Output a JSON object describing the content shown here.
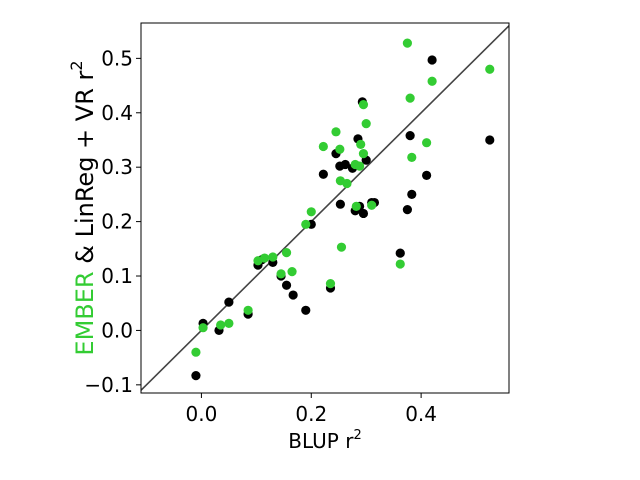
{
  "chart_data": {
    "type": "scatter",
    "xlabel": "BLUP r",
    "xlabel_sup": "2",
    "ylabel_parts": [
      {
        "text": "EMBER",
        "color": "#33cc33"
      },
      {
        "text": " & LinReg + VR r",
        "color": "#000000"
      }
    ],
    "ylabel_sup": "2",
    "xlim": [
      -0.11,
      0.56
    ],
    "ylim": [
      -0.115,
      0.565
    ],
    "xticks": [
      0.0,
      0.2,
      0.4
    ],
    "xtick_labels": [
      "0.0",
      "0.2",
      "0.4"
    ],
    "yticks": [
      -0.1,
      0.0,
      0.1,
      0.2,
      0.3,
      0.4,
      0.5
    ],
    "ytick_labels": [
      "−0.1",
      "0.0",
      "0.1",
      "0.2",
      "0.3",
      "0.4",
      "0.5"
    ],
    "grid": false,
    "diagonal_line": true,
    "series": [
      {
        "color": "#000000",
        "points": [
          [
            -0.01,
            -0.083
          ],
          [
            0.003,
            0.013
          ],
          [
            0.032,
            0.0
          ],
          [
            0.05,
            0.052
          ],
          [
            0.085,
            0.03
          ],
          [
            0.103,
            0.12
          ],
          [
            0.11,
            0.13
          ],
          [
            0.13,
            0.125
          ],
          [
            0.145,
            0.1
          ],
          [
            0.155,
            0.083
          ],
          [
            0.167,
            0.065
          ],
          [
            0.19,
            0.037
          ],
          [
            0.2,
            0.195
          ],
          [
            0.222,
            0.287
          ],
          [
            0.235,
            0.078
          ],
          [
            0.245,
            0.325
          ],
          [
            0.252,
            0.302
          ],
          [
            0.253,
            0.232
          ],
          [
            0.262,
            0.305
          ],
          [
            0.275,
            0.298
          ],
          [
            0.28,
            0.22
          ],
          [
            0.285,
            0.352
          ],
          [
            0.288,
            0.228
          ],
          [
            0.293,
            0.42
          ],
          [
            0.295,
            0.215
          ],
          [
            0.3,
            0.313
          ],
          [
            0.31,
            0.235
          ],
          [
            0.315,
            0.235
          ],
          [
            0.362,
            0.142
          ],
          [
            0.375,
            0.222
          ],
          [
            0.38,
            0.358
          ],
          [
            0.383,
            0.25
          ],
          [
            0.41,
            0.285
          ],
          [
            0.42,
            0.497
          ],
          [
            0.525,
            0.35
          ]
        ]
      },
      {
        "color": "#33cc33",
        "points": [
          [
            -0.01,
            -0.04
          ],
          [
            0.003,
            0.005
          ],
          [
            0.035,
            0.01
          ],
          [
            0.05,
            0.013
          ],
          [
            0.085,
            0.037
          ],
          [
            0.103,
            0.128
          ],
          [
            0.115,
            0.133
          ],
          [
            0.13,
            0.135
          ],
          [
            0.145,
            0.104
          ],
          [
            0.155,
            0.143
          ],
          [
            0.165,
            0.108
          ],
          [
            0.19,
            0.195
          ],
          [
            0.2,
            0.218
          ],
          [
            0.222,
            0.338
          ],
          [
            0.235,
            0.086
          ],
          [
            0.245,
            0.365
          ],
          [
            0.252,
            0.333
          ],
          [
            0.253,
            0.275
          ],
          [
            0.255,
            0.153
          ],
          [
            0.265,
            0.27
          ],
          [
            0.28,
            0.305
          ],
          [
            0.282,
            0.228
          ],
          [
            0.288,
            0.302
          ],
          [
            0.29,
            0.342
          ],
          [
            0.295,
            0.415
          ],
          [
            0.295,
            0.325
          ],
          [
            0.3,
            0.38
          ],
          [
            0.31,
            0.23
          ],
          [
            0.362,
            0.122
          ],
          [
            0.375,
            0.528
          ],
          [
            0.38,
            0.427
          ],
          [
            0.383,
            0.318
          ],
          [
            0.41,
            0.345
          ],
          [
            0.42,
            0.458
          ],
          [
            0.525,
            0.48
          ]
        ]
      }
    ]
  }
}
